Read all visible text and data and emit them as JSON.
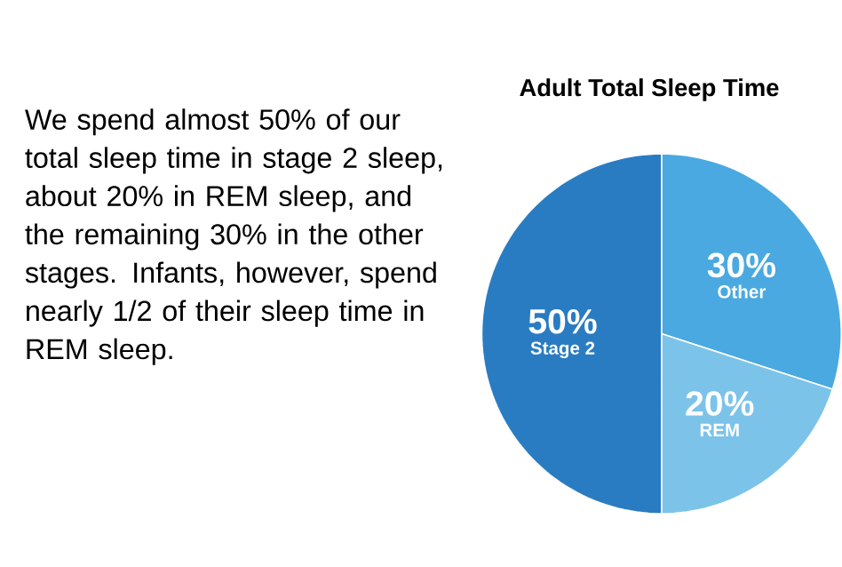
{
  "chart_data": {
    "type": "pie",
    "title": "Adult Total Sleep Time",
    "categories": [
      "Other",
      "REM",
      "Stage 2"
    ],
    "values": [
      30,
      20,
      50
    ],
    "value_labels": [
      "30%",
      "20%",
      "50%"
    ],
    "colors": [
      "#4aa9e0",
      "#7cc3ea",
      "#2a7cc2"
    ],
    "annotations": [
      "We spend almost 50% of our total sleep time in stage 2 sleep, about 20% in REM sleep, and the remaining 30% in the other stages. Infants, however, spend nearly 1/2 of their sleep time in REM sleep."
    ]
  }
}
